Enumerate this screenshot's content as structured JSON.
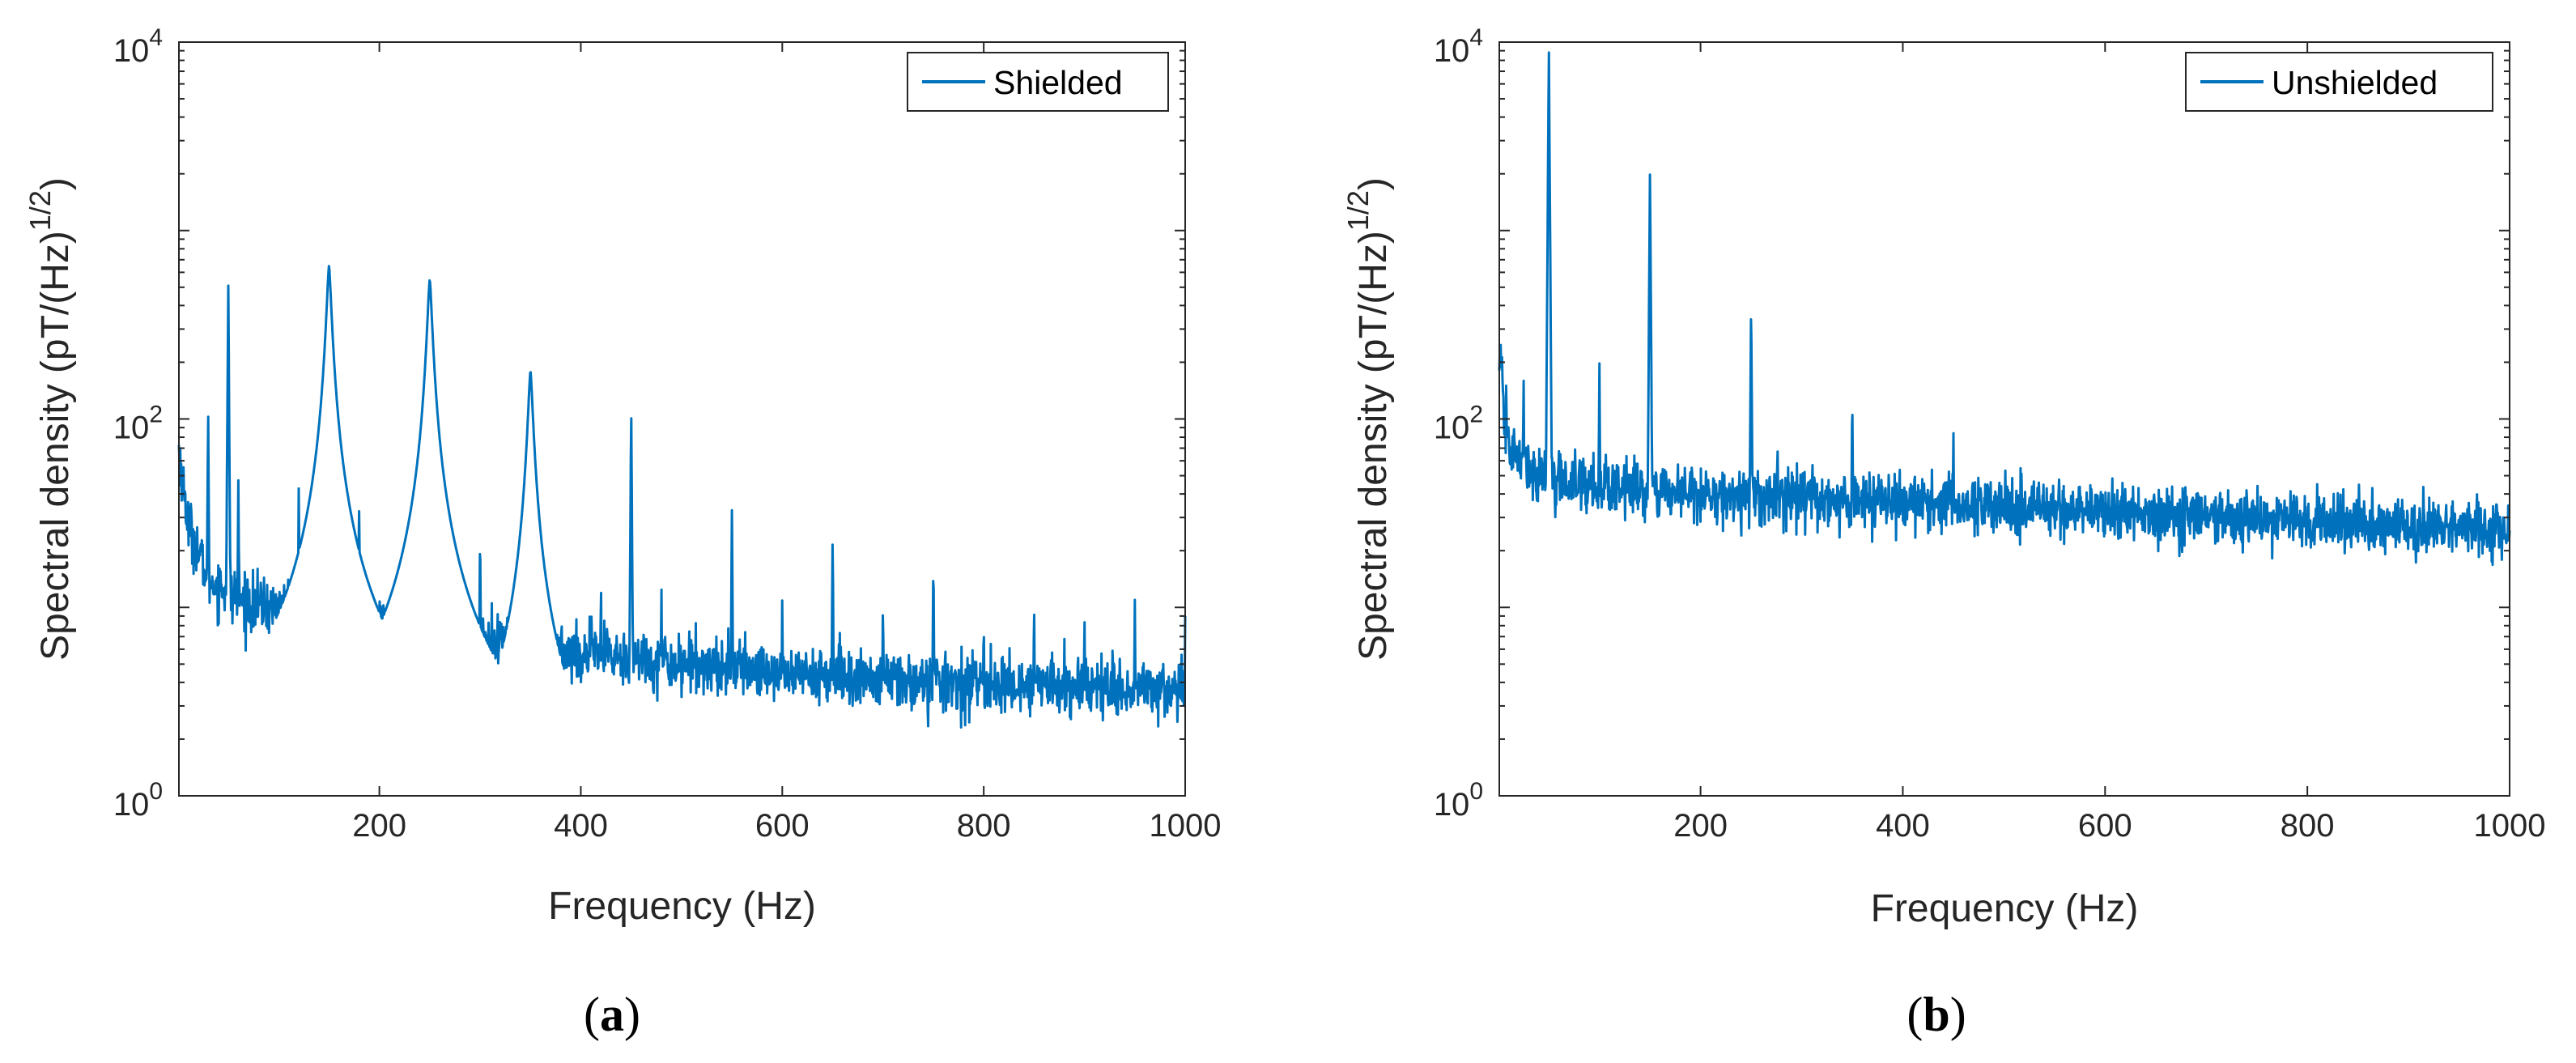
{
  "line_color": "#0072BD",
  "chart_data": [
    {
      "type": "line",
      "y_scale": "log",
      "xlabel": "Frequency (Hz)",
      "ylabel": "Spectral density (pT/(Hz)",
      "ylabel_exponent": "1/2",
      "ylabel_close": ")",
      "xlim": [
        1,
        1000
      ],
      "ylim": [
        1,
        10000
      ],
      "x_ticks": [
        200,
        400,
        600,
        800,
        1000
      ],
      "x_tick_labels": [
        "200",
        "400",
        "600",
        "800",
        "1000"
      ],
      "y_ticks": [
        1,
        100,
        10000
      ],
      "y_tick_labels": [
        {
          "base": "10",
          "exp": "0"
        },
        {
          "base": "10",
          "exp": "2"
        },
        {
          "base": "10",
          "exp": "4"
        }
      ],
      "legend": "Shielded",
      "legend_position": "top-right",
      "panel_label": "(a)",
      "noise_floor_points": [
        [
          1,
          70
        ],
        [
          10,
          28
        ],
        [
          30,
          14
        ],
        [
          70,
          10.5
        ],
        [
          120,
          9.5
        ],
        [
          200,
          8
        ],
        [
          300,
          6.7
        ],
        [
          400,
          5.7
        ],
        [
          500,
          5.1
        ],
        [
          600,
          4.5
        ],
        [
          700,
          4.1
        ],
        [
          800,
          3.9
        ],
        [
          900,
          3.8
        ],
        [
          1000,
          3.7
        ]
      ],
      "peaks": [
        {
          "f": 30,
          "value": 115,
          "type": "spike"
        },
        {
          "f": 50,
          "value": 550,
          "type": "spike"
        },
        {
          "f": 60,
          "value": 50,
          "type": "spike"
        },
        {
          "f": 120,
          "value": 45,
          "type": "spike"
        },
        {
          "f": 150,
          "value": 650,
          "type": "resonance"
        },
        {
          "f": 180,
          "value": 38,
          "type": "spike"
        },
        {
          "f": 250,
          "value": 550,
          "type": "resonance"
        },
        {
          "f": 300,
          "value": 28,
          "type": "spike"
        },
        {
          "f": 350,
          "value": 180,
          "type": "resonance"
        },
        {
          "f": 420,
          "value": 15,
          "type": "spike"
        },
        {
          "f": 450,
          "value": 120,
          "type": "spike"
        },
        {
          "f": 480,
          "value": 14,
          "type": "spike"
        },
        {
          "f": 550,
          "value": 33,
          "type": "spike"
        },
        {
          "f": 600,
          "value": 12,
          "type": "spike"
        },
        {
          "f": 650,
          "value": 26,
          "type": "spike"
        },
        {
          "f": 700,
          "value": 12,
          "type": "spike"
        },
        {
          "f": 750,
          "value": 20,
          "type": "spike"
        },
        {
          "f": 800,
          "value": 10,
          "type": "spike"
        },
        {
          "f": 850,
          "value": 12,
          "type": "spike"
        },
        {
          "f": 900,
          "value": 10,
          "type": "spike"
        },
        {
          "f": 950,
          "value": 12,
          "type": "spike"
        },
        {
          "f": 1000,
          "value": 9,
          "type": "spike"
        }
      ]
    },
    {
      "type": "line",
      "y_scale": "log",
      "xlabel": "Frequency (Hz)",
      "ylabel": "Spectral density (pT/(Hz)",
      "ylabel_exponent": "1/2",
      "ylabel_close": ")",
      "xlim": [
        1,
        1000
      ],
      "ylim": [
        1,
        10000
      ],
      "x_ticks": [
        200,
        400,
        600,
        800,
        1000
      ],
      "x_tick_labels": [
        "200",
        "400",
        "600",
        "800",
        "1000"
      ],
      "y_ticks": [
        1,
        100,
        10000
      ],
      "y_tick_labels": [
        {
          "base": "10",
          "exp": "0"
        },
        {
          "base": "10",
          "exp": "2"
        },
        {
          "base": "10",
          "exp": "4"
        }
      ],
      "legend": "Unshielded",
      "legend_position": "top-right",
      "panel_label": "(b)",
      "noise_floor_points": [
        [
          1,
          220
        ],
        [
          5,
          120
        ],
        [
          10,
          75
        ],
        [
          20,
          60
        ],
        [
          40,
          50
        ],
        [
          100,
          44
        ],
        [
          200,
          40
        ],
        [
          300,
          38
        ],
        [
          400,
          36
        ],
        [
          500,
          34
        ],
        [
          600,
          32
        ],
        [
          700,
          30
        ],
        [
          800,
          29
        ],
        [
          900,
          27
        ],
        [
          1000,
          26
        ]
      ],
      "peaks": [
        {
          "f": 25,
          "value": 180,
          "type": "spike"
        },
        {
          "f": 50,
          "value": 9500,
          "type": "spike"
        },
        {
          "f": 100,
          "value": 200,
          "type": "spike"
        },
        {
          "f": 150,
          "value": 2200,
          "type": "spike"
        },
        {
          "f": 250,
          "value": 450,
          "type": "spike"
        },
        {
          "f": 350,
          "value": 150,
          "type": "spike"
        },
        {
          "f": 450,
          "value": 100,
          "type": "spike"
        }
      ]
    }
  ]
}
